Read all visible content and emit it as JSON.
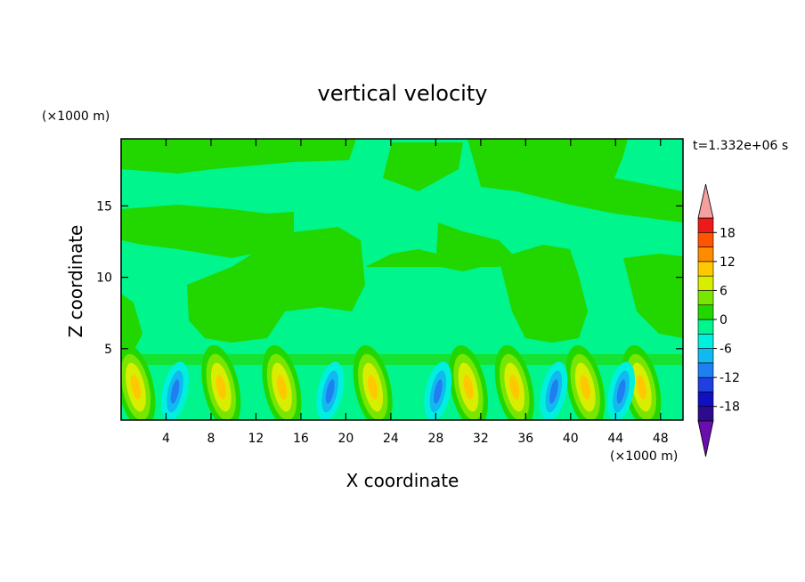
{
  "chart_data": {
    "type": "heatmap",
    "title": "vertical velocity",
    "xlabel": "X coordinate",
    "ylabel": "Z coordinate",
    "x_unit": "(×1000 m)",
    "y_unit": "(×1000 m)",
    "time_label": "t=1.332e+06 s",
    "xlim": [
      0,
      50
    ],
    "ylim": [
      0,
      19.7
    ],
    "x_ticks": [
      4,
      8,
      12,
      16,
      20,
      24,
      28,
      32,
      36,
      40,
      44,
      48
    ],
    "y_ticks": [
      5,
      10,
      15
    ],
    "colorbar": {
      "ticks": [
        18,
        12,
        6,
        0,
        -6,
        -12,
        -18
      ],
      "levels": [
        -21,
        -18,
        -15,
        -12,
        -9,
        -6,
        -3,
        0,
        3,
        6,
        9,
        12,
        15,
        18,
        21
      ],
      "colors": [
        "#6a0dad",
        "#2e0a8c",
        "#1010c0",
        "#1f3fe0",
        "#1e80f0",
        "#12b8f0",
        "#00f0e0",
        "#00f58c",
        "#22d700",
        "#78e600",
        "#d8ee00",
        "#ffc800",
        "#ff8c00",
        "#ff5500",
        "#ee1a1a",
        "#f4a0a0"
      ],
      "extend": "both"
    },
    "updrafts_x": [
      1.3,
      8.9,
      14.3,
      22.4,
      30.9,
      35.0,
      41.3,
      46.3
    ],
    "downdrafts_x": [
      4.8,
      18.6,
      28.2,
      38.5,
      44.5
    ]
  }
}
